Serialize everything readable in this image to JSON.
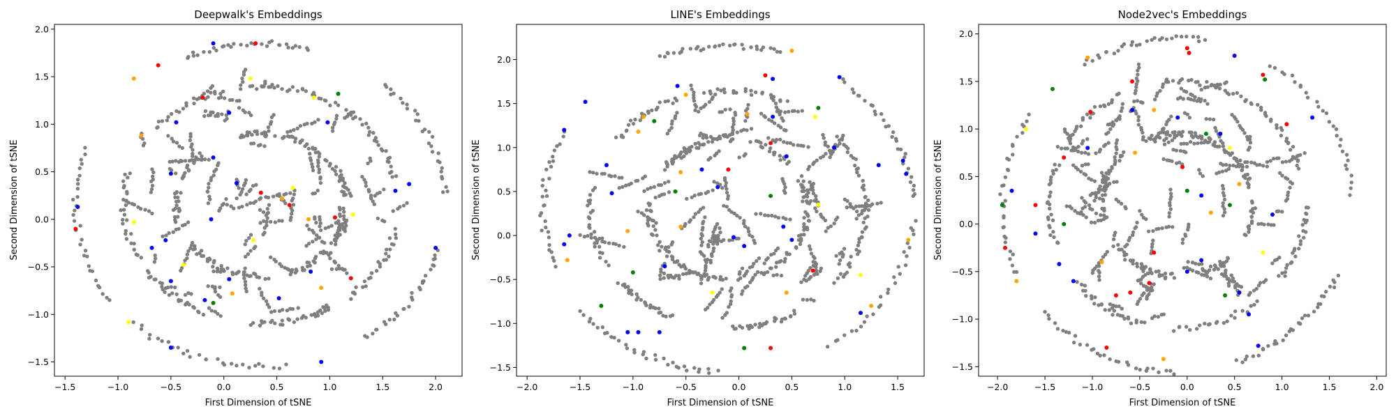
{
  "figure": {
    "background": "#ffffff"
  },
  "colors": {
    "default": "#7f7f7f",
    "red": "#ff0000",
    "blue": "#0000ff",
    "green": "#008000",
    "orange": "#ffa500",
    "yellow": "#ffff00"
  },
  "chart_data": [
    {
      "type": "scatter",
      "title": "Deepwalk's Embeddings",
      "xlabel": "First Dimension of tSNE",
      "ylabel": "Second Dimension of tSNE",
      "xlim": [
        -1.6,
        2.25
      ],
      "ylim": [
        -1.65,
        2.05
      ],
      "xticks": [
        -1.5,
        -1.0,
        -0.5,
        0.0,
        0.5,
        1.0,
        1.5,
        2.0
      ],
      "yticks": [
        -1.5,
        -1.0,
        -0.5,
        0.0,
        0.5,
        1.0,
        1.5,
        2.0
      ],
      "highlight_points": [
        {
          "x": 0.3,
          "y": 1.85,
          "c": "red"
        },
        {
          "x": -0.1,
          "y": 1.85,
          "c": "blue"
        },
        {
          "x": -0.85,
          "y": 1.48,
          "c": "orange"
        },
        {
          "x": -0.62,
          "y": 1.62,
          "c": "red"
        },
        {
          "x": 0.25,
          "y": 1.48,
          "c": "yellow"
        },
        {
          "x": -0.2,
          "y": 1.28,
          "c": "red"
        },
        {
          "x": 1.08,
          "y": 1.32,
          "c": "green"
        },
        {
          "x": 0.05,
          "y": 1.12,
          "c": "blue"
        },
        {
          "x": -0.45,
          "y": 1.02,
          "c": "blue"
        },
        {
          "x": 0.98,
          "y": 1.02,
          "c": "blue"
        },
        {
          "x": -0.78,
          "y": 0.88,
          "c": "orange"
        },
        {
          "x": -0.5,
          "y": 0.48,
          "c": "blue"
        },
        {
          "x": -0.1,
          "y": 0.65,
          "c": "blue"
        },
        {
          "x": 0.12,
          "y": 0.38,
          "c": "blue"
        },
        {
          "x": 0.35,
          "y": 0.28,
          "c": "red"
        },
        {
          "x": 0.55,
          "y": 0.22,
          "c": "orange"
        },
        {
          "x": 0.65,
          "y": 0.33,
          "c": "yellow"
        },
        {
          "x": 0.62,
          "y": 0.15,
          "c": "red"
        },
        {
          "x": 1.62,
          "y": 0.3,
          "c": "blue"
        },
        {
          "x": 1.75,
          "y": 0.37,
          "c": "blue"
        },
        {
          "x": -1.4,
          "y": -0.1,
          "c": "red"
        },
        {
          "x": -1.38,
          "y": 0.13,
          "c": "blue"
        },
        {
          "x": -0.85,
          "y": -0.03,
          "c": "yellow"
        },
        {
          "x": -0.55,
          "y": -0.22,
          "c": "blue"
        },
        {
          "x": -0.12,
          "y": 0.0,
          "c": "blue"
        },
        {
          "x": 0.28,
          "y": -0.22,
          "c": "yellow"
        },
        {
          "x": 0.8,
          "y": 0.0,
          "c": "orange"
        },
        {
          "x": 1.05,
          "y": 0.02,
          "c": "red"
        },
        {
          "x": 1.22,
          "y": 0.05,
          "c": "yellow"
        },
        {
          "x": 2.0,
          "y": -0.3,
          "c": "blue"
        },
        {
          "x": -0.68,
          "y": -0.3,
          "c": "blue"
        },
        {
          "x": -0.38,
          "y": -0.48,
          "c": "yellow"
        },
        {
          "x": -0.5,
          "y": -0.65,
          "c": "blue"
        },
        {
          "x": 0.05,
          "y": -0.63,
          "c": "blue"
        },
        {
          "x": 0.08,
          "y": -0.78,
          "c": "orange"
        },
        {
          "x": -0.18,
          "y": -0.85,
          "c": "blue"
        },
        {
          "x": -0.1,
          "y": -0.88,
          "c": "green"
        },
        {
          "x": 0.52,
          "y": -0.83,
          "c": "blue"
        },
        {
          "x": 0.82,
          "y": -0.55,
          "c": "blue"
        },
        {
          "x": 0.92,
          "y": -0.72,
          "c": "orange"
        },
        {
          "x": 1.2,
          "y": -0.62,
          "c": "red"
        },
        {
          "x": -0.9,
          "y": -1.08,
          "c": "yellow"
        },
        {
          "x": -0.5,
          "y": -1.35,
          "c": "blue"
        },
        {
          "x": 0.92,
          "y": -1.5,
          "c": "blue"
        },
        {
          "x": 0.85,
          "y": 1.28,
          "c": "yellow"
        }
      ]
    },
    {
      "type": "scatter",
      "title": "LINE's Embeddings",
      "xlabel": "First Dimension of tSNE",
      "ylabel": "Second Dimension of tSNE",
      "xlim": [
        -2.1,
        1.75
      ],
      "ylim": [
        -1.6,
        2.4
      ],
      "xticks": [
        -2.0,
        -1.5,
        -1.0,
        -0.5,
        0.0,
        0.5,
        1.0,
        1.5
      ],
      "yticks": [
        -1.5,
        -1.0,
        -0.5,
        0.0,
        0.5,
        1.0,
        1.5,
        2.0
      ],
      "highlight_points": [
        {
          "x": -1.65,
          "y": 1.2,
          "c": "blue"
        },
        {
          "x": -1.45,
          "y": 1.52,
          "c": "blue"
        },
        {
          "x": -0.9,
          "y": 1.35,
          "c": "orange"
        },
        {
          "x": -0.8,
          "y": 1.3,
          "c": "green"
        },
        {
          "x": -0.5,
          "y": 1.6,
          "c": "orange"
        },
        {
          "x": -0.58,
          "y": 1.7,
          "c": "blue"
        },
        {
          "x": 0.25,
          "y": 1.82,
          "c": "red"
        },
        {
          "x": 0.32,
          "y": 1.78,
          "c": "blue"
        },
        {
          "x": 0.5,
          "y": 2.1,
          "c": "orange"
        },
        {
          "x": 0.95,
          "y": 1.8,
          "c": "blue"
        },
        {
          "x": 0.75,
          "y": 1.45,
          "c": "green"
        },
        {
          "x": 0.72,
          "y": 1.35,
          "c": "yellow"
        },
        {
          "x": 0.08,
          "y": 1.38,
          "c": "orange"
        },
        {
          "x": 0.32,
          "y": 1.35,
          "c": "blue"
        },
        {
          "x": 0.3,
          "y": 1.05,
          "c": "red"
        },
        {
          "x": 0.45,
          "y": 0.9,
          "c": "blue"
        },
        {
          "x": -0.1,
          "y": 0.75,
          "c": "red"
        },
        {
          "x": -0.95,
          "y": 1.18,
          "c": "orange"
        },
        {
          "x": -1.25,
          "y": 0.8,
          "c": "blue"
        },
        {
          "x": -1.2,
          "y": 0.48,
          "c": "blue"
        },
        {
          "x": -0.55,
          "y": 0.72,
          "c": "orange"
        },
        {
          "x": -0.35,
          "y": 0.75,
          "c": "blue"
        },
        {
          "x": -0.6,
          "y": 0.5,
          "c": "green"
        },
        {
          "x": -0.2,
          "y": 0.55,
          "c": "blue"
        },
        {
          "x": 0.3,
          "y": 0.45,
          "c": "green"
        },
        {
          "x": 0.75,
          "y": 0.35,
          "c": "yellow"
        },
        {
          "x": 0.9,
          "y": 1.0,
          "c": "blue"
        },
        {
          "x": 1.55,
          "y": 0.85,
          "c": "blue"
        },
        {
          "x": 1.32,
          "y": 0.8,
          "c": "blue"
        },
        {
          "x": 1.58,
          "y": 0.7,
          "c": "blue"
        },
        {
          "x": 1.6,
          "y": -0.05,
          "c": "orange"
        },
        {
          "x": -1.6,
          "y": 0.0,
          "c": "blue"
        },
        {
          "x": -1.65,
          "y": -0.1,
          "c": "blue"
        },
        {
          "x": -1.62,
          "y": -0.28,
          "c": "orange"
        },
        {
          "x": -1.05,
          "y": 0.05,
          "c": "orange"
        },
        {
          "x": -0.55,
          "y": 0.1,
          "c": "orange"
        },
        {
          "x": -0.05,
          "y": -0.02,
          "c": "blue"
        },
        {
          "x": 0.05,
          "y": -0.12,
          "c": "blue"
        },
        {
          "x": 0.42,
          "y": 0.1,
          "c": "blue"
        },
        {
          "x": 0.5,
          "y": -0.05,
          "c": "blue"
        },
        {
          "x": -0.7,
          "y": -0.35,
          "c": "blue"
        },
        {
          "x": -1.0,
          "y": -0.42,
          "c": "green"
        },
        {
          "x": -0.25,
          "y": -0.65,
          "c": "yellow"
        },
        {
          "x": 0.45,
          "y": -0.65,
          "c": "orange"
        },
        {
          "x": 0.7,
          "y": -0.4,
          "c": "red"
        },
        {
          "x": 1.15,
          "y": -0.45,
          "c": "yellow"
        },
        {
          "x": -1.3,
          "y": -0.8,
          "c": "green"
        },
        {
          "x": -0.95,
          "y": -1.1,
          "c": "blue"
        },
        {
          "x": -1.05,
          "y": -1.1,
          "c": "blue"
        },
        {
          "x": -0.75,
          "y": -1.1,
          "c": "blue"
        },
        {
          "x": 0.05,
          "y": -1.28,
          "c": "green"
        },
        {
          "x": 0.3,
          "y": -1.28,
          "c": "red"
        },
        {
          "x": 1.15,
          "y": -0.88,
          "c": "blue"
        },
        {
          "x": 1.25,
          "y": -0.8,
          "c": "orange"
        }
      ]
    },
    {
      "type": "scatter",
      "title": "Node2vec's Embeddings",
      "xlabel": "First Dimension of tSNE",
      "ylabel": "Second Dimension of tSNE",
      "xlim": [
        -2.2,
        2.1
      ],
      "ylim": [
        -1.6,
        2.1
      ],
      "xticks": [
        -2.0,
        -1.5,
        -1.0,
        -0.5,
        0.0,
        0.5,
        1.0,
        1.5,
        2.0
      ],
      "yticks": [
        -1.5,
        -1.0,
        -0.5,
        0.0,
        0.5,
        1.0,
        1.5,
        2.0
      ],
      "highlight_points": [
        {
          "x": 0.0,
          "y": 1.85,
          "c": "red"
        },
        {
          "x": 0.02,
          "y": 1.8,
          "c": "red"
        },
        {
          "x": 0.5,
          "y": 1.77,
          "c": "blue"
        },
        {
          "x": 0.8,
          "y": 1.57,
          "c": "red"
        },
        {
          "x": 0.82,
          "y": 1.52,
          "c": "green"
        },
        {
          "x": -1.05,
          "y": 1.75,
          "c": "orange"
        },
        {
          "x": -0.58,
          "y": 1.5,
          "c": "red"
        },
        {
          "x": -1.42,
          "y": 1.42,
          "c": "green"
        },
        {
          "x": -1.02,
          "y": 1.18,
          "c": "red"
        },
        {
          "x": -0.58,
          "y": 1.2,
          "c": "blue"
        },
        {
          "x": -0.35,
          "y": 1.2,
          "c": "orange"
        },
        {
          "x": -0.1,
          "y": 1.12,
          "c": "blue"
        },
        {
          "x": 0.2,
          "y": 0.95,
          "c": "green"
        },
        {
          "x": 0.35,
          "y": 0.95,
          "c": "blue"
        },
        {
          "x": 1.32,
          "y": 1.12,
          "c": "blue"
        },
        {
          "x": 1.05,
          "y": 1.05,
          "c": "red"
        },
        {
          "x": -1.7,
          "y": 1.0,
          "c": "yellow"
        },
        {
          "x": -1.3,
          "y": 0.7,
          "c": "red"
        },
        {
          "x": -1.05,
          "y": 0.8,
          "c": "blue"
        },
        {
          "x": -0.55,
          "y": 0.75,
          "c": "orange"
        },
        {
          "x": -0.05,
          "y": 0.6,
          "c": "red"
        },
        {
          "x": 0.45,
          "y": 0.8,
          "c": "yellow"
        },
        {
          "x": -1.85,
          "y": 0.35,
          "c": "blue"
        },
        {
          "x": -1.95,
          "y": 0.2,
          "c": "green"
        },
        {
          "x": -1.6,
          "y": 0.2,
          "c": "red"
        },
        {
          "x": -1.3,
          "y": 0.0,
          "c": "green"
        },
        {
          "x": 0.0,
          "y": 0.35,
          "c": "green"
        },
        {
          "x": 0.15,
          "y": 0.3,
          "c": "blue"
        },
        {
          "x": 0.25,
          "y": 0.12,
          "c": "orange"
        },
        {
          "x": 0.45,
          "y": 0.2,
          "c": "green"
        },
        {
          "x": 0.55,
          "y": 0.42,
          "c": "orange"
        },
        {
          "x": 0.9,
          "y": 0.1,
          "c": "blue"
        },
        {
          "x": -1.92,
          "y": -0.25,
          "c": "red"
        },
        {
          "x": -1.6,
          "y": -0.1,
          "c": "blue"
        },
        {
          "x": -1.35,
          "y": -0.42,
          "c": "blue"
        },
        {
          "x": -0.9,
          "y": -0.4,
          "c": "orange"
        },
        {
          "x": -0.35,
          "y": -0.3,
          "c": "red"
        },
        {
          "x": 0.0,
          "y": -0.5,
          "c": "blue"
        },
        {
          "x": 0.15,
          "y": -0.38,
          "c": "blue"
        },
        {
          "x": 0.8,
          "y": -0.3,
          "c": "yellow"
        },
        {
          "x": -1.2,
          "y": -0.6,
          "c": "blue"
        },
        {
          "x": -0.75,
          "y": -0.75,
          "c": "red"
        },
        {
          "x": -0.6,
          "y": -0.72,
          "c": "red"
        },
        {
          "x": -0.4,
          "y": -0.62,
          "c": "red"
        },
        {
          "x": 0.4,
          "y": -0.75,
          "c": "green"
        },
        {
          "x": 0.65,
          "y": -0.95,
          "c": "blue"
        },
        {
          "x": -1.8,
          "y": -0.6,
          "c": "orange"
        },
        {
          "x": -0.85,
          "y": -1.3,
          "c": "red"
        },
        {
          "x": -0.25,
          "y": -1.42,
          "c": "orange"
        },
        {
          "x": 0.75,
          "y": -1.28,
          "c": "blue"
        },
        {
          "x": 0.55,
          "y": -0.72,
          "c": "blue"
        }
      ]
    }
  ]
}
